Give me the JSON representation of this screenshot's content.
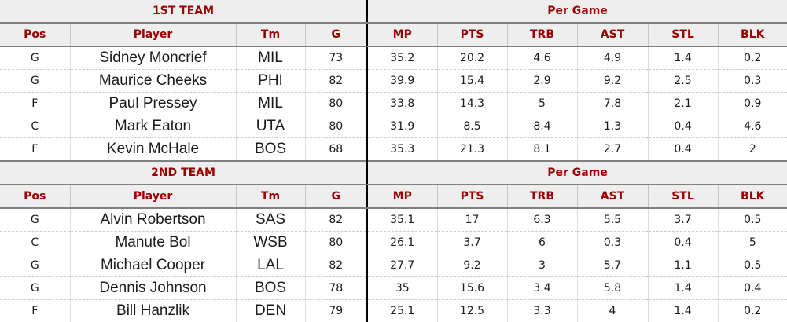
{
  "chart_data": {
    "type": "table",
    "columns": [
      "Pos",
      "Player",
      "Tm",
      "G",
      "MP",
      "PTS",
      "TRB",
      "AST",
      "STL",
      "BLK"
    ],
    "sections": [
      {
        "title": "1ST TEAM",
        "group_label": "Per Game",
        "rows": [
          [
            "G",
            "Sidney Moncrief",
            "MIL",
            "73",
            "35.2",
            "20.2",
            "4.6",
            "4.9",
            "1.4",
            "0.2"
          ],
          [
            "G",
            "Maurice Cheeks",
            "PHI",
            "82",
            "39.9",
            "15.4",
            "2.9",
            "9.2",
            "2.5",
            "0.3"
          ],
          [
            "F",
            "Paul Pressey",
            "MIL",
            "80",
            "33.8",
            "14.3",
            "5",
            "7.8",
            "2.1",
            "0.9"
          ],
          [
            "C",
            "Mark Eaton",
            "UTA",
            "80",
            "31.9",
            "8.5",
            "8.4",
            "1.3",
            "0.4",
            "4.6"
          ],
          [
            "F",
            "Kevin McHale",
            "BOS",
            "68",
            "35.3",
            "21.3",
            "8.1",
            "2.7",
            "0.4",
            "2"
          ]
        ]
      },
      {
        "title": "2ND TEAM",
        "group_label": "Per Game",
        "rows": [
          [
            "G",
            "Alvin Robertson",
            "SAS",
            "82",
            "35.1",
            "17",
            "6.3",
            "5.5",
            "3.7",
            "0.5"
          ],
          [
            "C",
            "Manute Bol",
            "WSB",
            "80",
            "26.1",
            "3.7",
            "6",
            "0.3",
            "0.4",
            "5"
          ],
          [
            "G",
            "Michael Cooper",
            "LAL",
            "82",
            "27.7",
            "9.2",
            "3",
            "5.7",
            "1.1",
            "0.5"
          ],
          [
            "G",
            "Dennis Johnson",
            "BOS",
            "78",
            "35",
            "15.6",
            "3.4",
            "5.8",
            "1.4",
            "0.4"
          ],
          [
            "F",
            "Bill Hanzlik",
            "DEN",
            "79",
            "25.1",
            "12.5",
            "3.3",
            "4",
            "1.4",
            "0.2"
          ]
        ]
      }
    ],
    "layout_hints": {
      "left_block_columns": 4,
      "per_game_block_columns": 6,
      "grid": "light vertical solid, dashed horizontal row separators"
    }
  },
  "colors": {
    "maroon_header_text": "#990000",
    "header_background": "#eeeeee",
    "thick_border": "#808080",
    "section_divider": "#000000"
  }
}
